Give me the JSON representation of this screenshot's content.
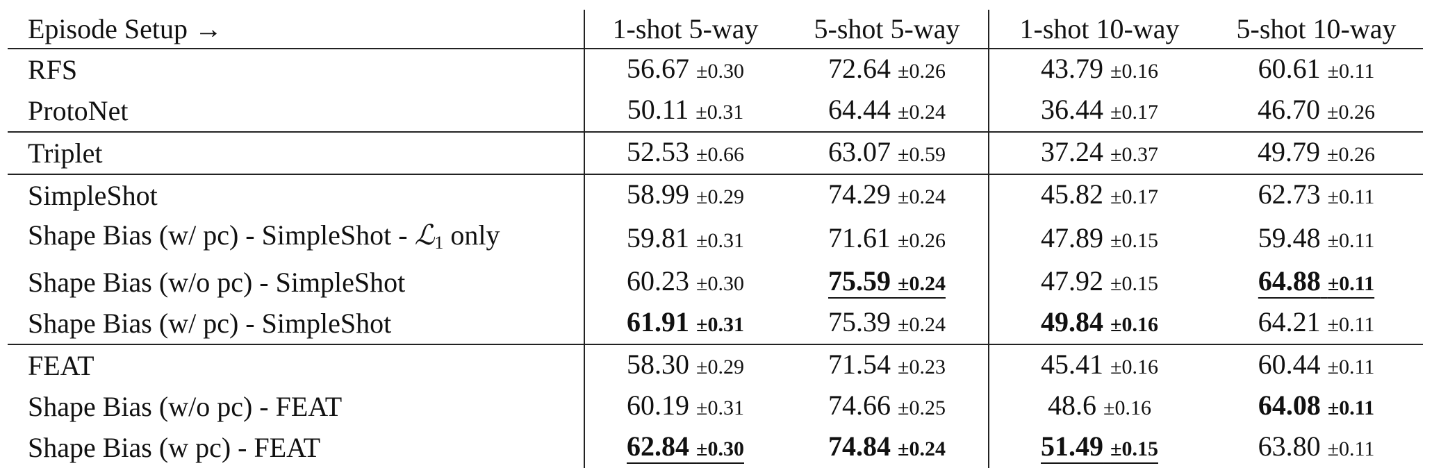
{
  "table": {
    "header": [
      "Episode Setup →",
      "1-shot 5-way",
      "5-shot 5-way",
      "1-shot 10-way",
      "5-shot 10-way"
    ],
    "rows": [
      {
        "name": "RFS",
        "cells": [
          {
            "v": "56.67",
            "pm": "±0.30"
          },
          {
            "v": "72.64",
            "pm": "±0.26"
          },
          {
            "v": "43.79",
            "pm": "±0.16"
          },
          {
            "v": "60.61",
            "pm": "±0.11"
          }
        ]
      },
      {
        "name": "ProtoNet",
        "cells": [
          {
            "v": "50.11",
            "pm": "±0.31"
          },
          {
            "v": "64.44",
            "pm": "±0.24"
          },
          {
            "v": "36.44",
            "pm": "±0.17"
          },
          {
            "v": "46.70",
            "pm": "±0.26"
          }
        ]
      },
      {
        "name": "Triplet",
        "cells": [
          {
            "v": "52.53",
            "pm": "±0.66"
          },
          {
            "v": "63.07",
            "pm": "±0.59"
          },
          {
            "v": "37.24",
            "pm": "±0.37"
          },
          {
            "v": "49.79",
            "pm": "±0.26"
          }
        ]
      },
      {
        "name": "SimpleShot",
        "cells": [
          {
            "v": "58.99",
            "pm": "±0.29"
          },
          {
            "v": "74.29",
            "pm": "±0.24"
          },
          {
            "v": "45.82",
            "pm": "±0.17"
          },
          {
            "v": "62.73",
            "pm": "±0.11"
          }
        ]
      },
      {
        "name": "Shape Bias (w/ pc) - SimpleShot - ",
        "name_math": "ℒ",
        "name_sub": "1",
        "name_tail": " only",
        "cells": [
          {
            "v": "59.81",
            "pm": "±0.31"
          },
          {
            "v": "71.61",
            "pm": "±0.26"
          },
          {
            "v": "47.89",
            "pm": "±0.15"
          },
          {
            "v": "59.48",
            "pm": "±0.11"
          }
        ]
      },
      {
        "name": "Shape Bias (w/o pc) - SimpleShot",
        "cells": [
          {
            "v": "60.23",
            "pm": "±0.30"
          },
          {
            "v": "75.59",
            "pm": "±0.24",
            "bold": true,
            "underline": true
          },
          {
            "v": "47.92",
            "pm": "±0.15"
          },
          {
            "v": "64.88",
            "pm": "±0.11",
            "bold": true,
            "underline": true
          }
        ]
      },
      {
        "name": "Shape Bias (w/ pc) - SimpleShot",
        "cells": [
          {
            "v": "61.91",
            "pm": "±0.31",
            "bold": true
          },
          {
            "v": "75.39",
            "pm": "±0.24"
          },
          {
            "v": "49.84",
            "pm": "±0.16",
            "bold": true
          },
          {
            "v": "64.21",
            "pm": "±0.11"
          }
        ]
      },
      {
        "name": "FEAT",
        "cells": [
          {
            "v": "58.30",
            "pm": "±0.29"
          },
          {
            "v": "71.54",
            "pm": "±0.23"
          },
          {
            "v": "45.41",
            "pm": "±0.16"
          },
          {
            "v": "60.44",
            "pm": "±0.11"
          }
        ]
      },
      {
        "name": "Shape Bias (w/o pc) - FEAT",
        "cells": [
          {
            "v": "60.19",
            "pm": "±0.31"
          },
          {
            "v": "74.66",
            "pm": "±0.25"
          },
          {
            "v": "48.6",
            "pm": "±0.16"
          },
          {
            "v": "64.08",
            "pm": "±0.11",
            "bold": true
          }
        ]
      },
      {
        "name": "Shape Bias (w pc) - FEAT",
        "cells": [
          {
            "v": "62.84",
            "pm": "±0.30",
            "bold": true,
            "underline": true
          },
          {
            "v": "74.84",
            "pm": "±0.24",
            "bold": true
          },
          {
            "v": "51.49",
            "pm": "±0.15",
            "bold": true,
            "underline": true
          },
          {
            "v": "63.80",
            "pm": "±0.11"
          }
        ]
      }
    ],
    "group_starts": [
      0,
      2,
      3,
      7
    ]
  }
}
